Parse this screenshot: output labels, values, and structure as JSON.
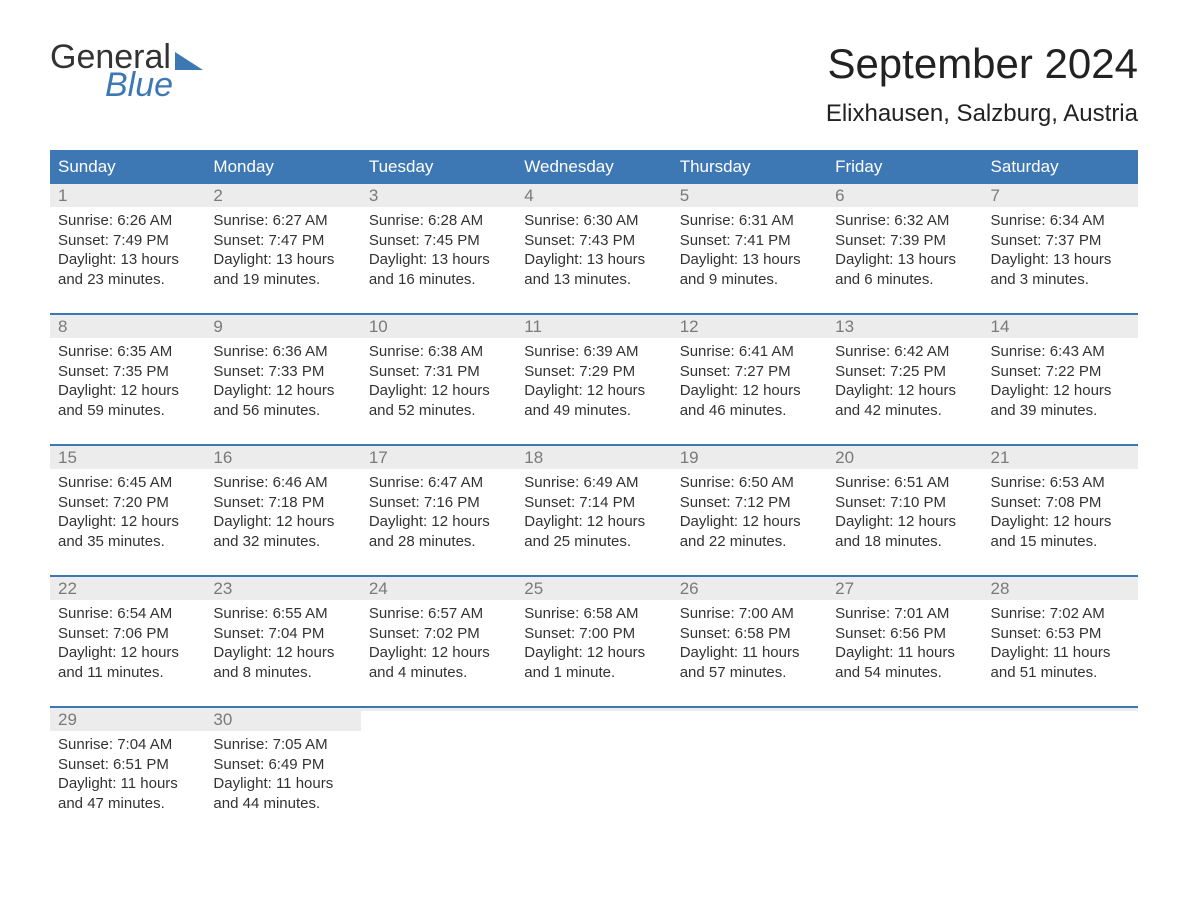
{
  "logo": {
    "text1": "General",
    "text2": "Blue"
  },
  "title": "September 2024",
  "location": "Elixhausen, Salzburg, Austria",
  "colors": {
    "header_bg": "#3d78b5",
    "header_text": "#ffffff",
    "daynum_bg": "#ececec",
    "daynum_color": "#7a7a7a",
    "body_text": "#333333",
    "week_border": "#3d78b5",
    "logo_accent": "#3d78b5",
    "page_bg": "#ffffff"
  },
  "typography": {
    "title_fontsize": 42,
    "location_fontsize": 24,
    "dayname_fontsize": 17,
    "daynum_fontsize": 17,
    "body_fontsize": 15,
    "logo_fontsize": 34
  },
  "daynames": [
    "Sunday",
    "Monday",
    "Tuesday",
    "Wednesday",
    "Thursday",
    "Friday",
    "Saturday"
  ],
  "weeks": [
    [
      {
        "day": "1",
        "sunrise": "Sunrise: 6:26 AM",
        "sunset": "Sunset: 7:49 PM",
        "dl1": "Daylight: 13 hours",
        "dl2": "and 23 minutes."
      },
      {
        "day": "2",
        "sunrise": "Sunrise: 6:27 AM",
        "sunset": "Sunset: 7:47 PM",
        "dl1": "Daylight: 13 hours",
        "dl2": "and 19 minutes."
      },
      {
        "day": "3",
        "sunrise": "Sunrise: 6:28 AM",
        "sunset": "Sunset: 7:45 PM",
        "dl1": "Daylight: 13 hours",
        "dl2": "and 16 minutes."
      },
      {
        "day": "4",
        "sunrise": "Sunrise: 6:30 AM",
        "sunset": "Sunset: 7:43 PM",
        "dl1": "Daylight: 13 hours",
        "dl2": "and 13 minutes."
      },
      {
        "day": "5",
        "sunrise": "Sunrise: 6:31 AM",
        "sunset": "Sunset: 7:41 PM",
        "dl1": "Daylight: 13 hours",
        "dl2": "and 9 minutes."
      },
      {
        "day": "6",
        "sunrise": "Sunrise: 6:32 AM",
        "sunset": "Sunset: 7:39 PM",
        "dl1": "Daylight: 13 hours",
        "dl2": "and 6 minutes."
      },
      {
        "day": "7",
        "sunrise": "Sunrise: 6:34 AM",
        "sunset": "Sunset: 7:37 PM",
        "dl1": "Daylight: 13 hours",
        "dl2": "and 3 minutes."
      }
    ],
    [
      {
        "day": "8",
        "sunrise": "Sunrise: 6:35 AM",
        "sunset": "Sunset: 7:35 PM",
        "dl1": "Daylight: 12 hours",
        "dl2": "and 59 minutes."
      },
      {
        "day": "9",
        "sunrise": "Sunrise: 6:36 AM",
        "sunset": "Sunset: 7:33 PM",
        "dl1": "Daylight: 12 hours",
        "dl2": "and 56 minutes."
      },
      {
        "day": "10",
        "sunrise": "Sunrise: 6:38 AM",
        "sunset": "Sunset: 7:31 PM",
        "dl1": "Daylight: 12 hours",
        "dl2": "and 52 minutes."
      },
      {
        "day": "11",
        "sunrise": "Sunrise: 6:39 AM",
        "sunset": "Sunset: 7:29 PM",
        "dl1": "Daylight: 12 hours",
        "dl2": "and 49 minutes."
      },
      {
        "day": "12",
        "sunrise": "Sunrise: 6:41 AM",
        "sunset": "Sunset: 7:27 PM",
        "dl1": "Daylight: 12 hours",
        "dl2": "and 46 minutes."
      },
      {
        "day": "13",
        "sunrise": "Sunrise: 6:42 AM",
        "sunset": "Sunset: 7:25 PM",
        "dl1": "Daylight: 12 hours",
        "dl2": "and 42 minutes."
      },
      {
        "day": "14",
        "sunrise": "Sunrise: 6:43 AM",
        "sunset": "Sunset: 7:22 PM",
        "dl1": "Daylight: 12 hours",
        "dl2": "and 39 minutes."
      }
    ],
    [
      {
        "day": "15",
        "sunrise": "Sunrise: 6:45 AM",
        "sunset": "Sunset: 7:20 PM",
        "dl1": "Daylight: 12 hours",
        "dl2": "and 35 minutes."
      },
      {
        "day": "16",
        "sunrise": "Sunrise: 6:46 AM",
        "sunset": "Sunset: 7:18 PM",
        "dl1": "Daylight: 12 hours",
        "dl2": "and 32 minutes."
      },
      {
        "day": "17",
        "sunrise": "Sunrise: 6:47 AM",
        "sunset": "Sunset: 7:16 PM",
        "dl1": "Daylight: 12 hours",
        "dl2": "and 28 minutes."
      },
      {
        "day": "18",
        "sunrise": "Sunrise: 6:49 AM",
        "sunset": "Sunset: 7:14 PM",
        "dl1": "Daylight: 12 hours",
        "dl2": "and 25 minutes."
      },
      {
        "day": "19",
        "sunrise": "Sunrise: 6:50 AM",
        "sunset": "Sunset: 7:12 PM",
        "dl1": "Daylight: 12 hours",
        "dl2": "and 22 minutes."
      },
      {
        "day": "20",
        "sunrise": "Sunrise: 6:51 AM",
        "sunset": "Sunset: 7:10 PM",
        "dl1": "Daylight: 12 hours",
        "dl2": "and 18 minutes."
      },
      {
        "day": "21",
        "sunrise": "Sunrise: 6:53 AM",
        "sunset": "Sunset: 7:08 PM",
        "dl1": "Daylight: 12 hours",
        "dl2": "and 15 minutes."
      }
    ],
    [
      {
        "day": "22",
        "sunrise": "Sunrise: 6:54 AM",
        "sunset": "Sunset: 7:06 PM",
        "dl1": "Daylight: 12 hours",
        "dl2": "and 11 minutes."
      },
      {
        "day": "23",
        "sunrise": "Sunrise: 6:55 AM",
        "sunset": "Sunset: 7:04 PM",
        "dl1": "Daylight: 12 hours",
        "dl2": "and 8 minutes."
      },
      {
        "day": "24",
        "sunrise": "Sunrise: 6:57 AM",
        "sunset": "Sunset: 7:02 PM",
        "dl1": "Daylight: 12 hours",
        "dl2": "and 4 minutes."
      },
      {
        "day": "25",
        "sunrise": "Sunrise: 6:58 AM",
        "sunset": "Sunset: 7:00 PM",
        "dl1": "Daylight: 12 hours",
        "dl2": "and 1 minute."
      },
      {
        "day": "26",
        "sunrise": "Sunrise: 7:00 AM",
        "sunset": "Sunset: 6:58 PM",
        "dl1": "Daylight: 11 hours",
        "dl2": "and 57 minutes."
      },
      {
        "day": "27",
        "sunrise": "Sunrise: 7:01 AM",
        "sunset": "Sunset: 6:56 PM",
        "dl1": "Daylight: 11 hours",
        "dl2": "and 54 minutes."
      },
      {
        "day": "28",
        "sunrise": "Sunrise: 7:02 AM",
        "sunset": "Sunset: 6:53 PM",
        "dl1": "Daylight: 11 hours",
        "dl2": "and 51 minutes."
      }
    ],
    [
      {
        "day": "29",
        "sunrise": "Sunrise: 7:04 AM",
        "sunset": "Sunset: 6:51 PM",
        "dl1": "Daylight: 11 hours",
        "dl2": "and 47 minutes."
      },
      {
        "day": "30",
        "sunrise": "Sunrise: 7:05 AM",
        "sunset": "Sunset: 6:49 PM",
        "dl1": "Daylight: 11 hours",
        "dl2": "and 44 minutes."
      },
      {
        "empty": true
      },
      {
        "empty": true
      },
      {
        "empty": true
      },
      {
        "empty": true
      },
      {
        "empty": true
      }
    ]
  ]
}
